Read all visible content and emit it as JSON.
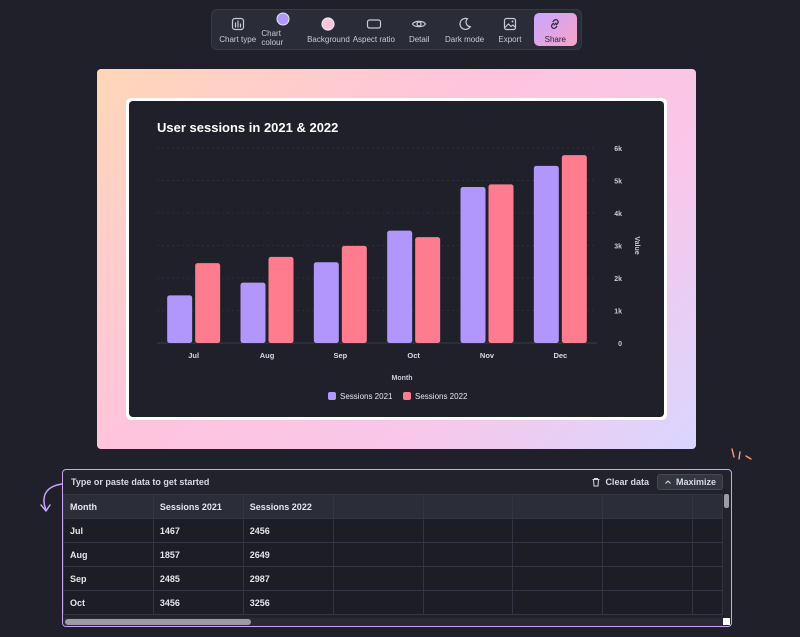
{
  "toolbar": {
    "items": [
      {
        "label": "Chart type",
        "icon": "chart-type-icon"
      },
      {
        "label": "Chart colour",
        "icon": "color-swatch-icon"
      },
      {
        "label": "Background",
        "icon": "background-swatch-icon"
      },
      {
        "label": "Aspect ratio",
        "icon": "aspect-ratio-icon"
      },
      {
        "label": "Detail",
        "icon": "eye-icon"
      },
      {
        "label": "Dark mode",
        "icon": "moon-icon"
      },
      {
        "label": "Export",
        "icon": "image-export-icon"
      },
      {
        "label": "Share",
        "icon": "link-icon"
      }
    ]
  },
  "chart_data": {
    "type": "bar",
    "title": "User sessions in 2021 & 2022",
    "xlabel": "Month",
    "ylabel": "Value",
    "categories": [
      "Jul",
      "Aug",
      "Sep",
      "Oct",
      "Nov",
      "Dec"
    ],
    "series": [
      {
        "name": "Sessions 2021",
        "values": [
          1467,
          1857,
          2485,
          3456,
          4800,
          5450
        ],
        "color": "#b197fc"
      },
      {
        "name": "Sessions 2022",
        "values": [
          2456,
          2649,
          2987,
          3256,
          4880,
          5780
        ],
        "color": "#ff7c8e"
      }
    ],
    "ylim": [
      0,
      6000
    ],
    "yticks": [
      0,
      1000,
      2000,
      3000,
      4000,
      5000,
      6000
    ],
    "ytick_labels": [
      "0",
      "1k",
      "2k",
      "3k",
      "4k",
      "5k",
      "6k"
    ],
    "yaxis_position": "right",
    "grid": true,
    "legend_position": "bottom"
  },
  "panel": {
    "hint": "Type or paste data to get started",
    "clear_label": "Clear data",
    "maximize_label": "Maximize",
    "columns": [
      "Month",
      "Sessions 2021",
      "Sessions 2022"
    ],
    "rows": [
      [
        "Jul",
        "1467",
        "2456"
      ],
      [
        "Aug",
        "1857",
        "2649"
      ],
      [
        "Sep",
        "2485",
        "2987"
      ],
      [
        "Oct",
        "3456",
        "3256"
      ]
    ]
  },
  "colors": {
    "background": "#1f2029",
    "accent": "#c8a3ff",
    "series_2021": "#b197fc",
    "series_2022": "#ff7c8e"
  }
}
